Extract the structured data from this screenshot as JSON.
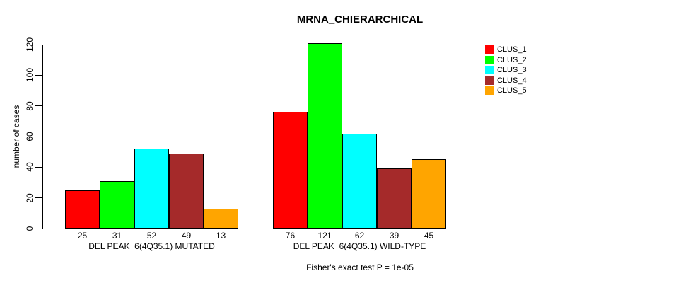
{
  "chart_data": {
    "type": "bar",
    "title": "MRNA_CHIERARCHICAL",
    "ylabel": "number of cases",
    "xlabel": "",
    "categories": [
      "DEL PEAK  6(4Q35.1) MUTATED",
      "DEL PEAK  6(4Q35.1) WILD-TYPE"
    ],
    "series": [
      {
        "name": "CLUS_1",
        "color": "#FF0000",
        "values": [
          25,
          76
        ]
      },
      {
        "name": "CLUS_2",
        "color": "#00FF00",
        "values": [
          31,
          121
        ]
      },
      {
        "name": "CLUS_3",
        "color": "#00FFFF",
        "values": [
          52,
          62
        ]
      },
      {
        "name": "CLUS_4",
        "color": "#A52A2A",
        "values": [
          49,
          39
        ]
      },
      {
        "name": "CLUS_5",
        "color": "#FFA500",
        "values": [
          13,
          45
        ]
      }
    ],
    "bar_value_labels": [
      [
        25,
        31,
        52,
        49,
        13
      ],
      [
        76,
        121,
        62,
        39,
        45
      ]
    ],
    "yticks": [
      0,
      20,
      40,
      60,
      80,
      100,
      120
    ],
    "ylim": [
      0,
      121
    ],
    "grid": false,
    "legend_position": "top-right",
    "annotation": "Fisher's exact test P = 1e-05"
  },
  "colors": {
    "background": "#FFFFFF",
    "axis": "#000000",
    "text": "#000000",
    "bar_border": "#000000"
  }
}
